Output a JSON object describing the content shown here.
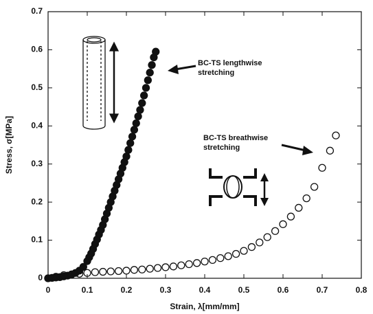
{
  "chart_data": {
    "type": "scatter",
    "x_label": "Strain, λ[mm/mm]",
    "y_label": "Stress, σ[MPa]",
    "xlim": [
      0,
      0.8
    ],
    "ylim": [
      0,
      0.7
    ],
    "xticks": [
      0,
      0.1,
      0.2,
      0.3,
      0.4,
      0.5,
      0.6,
      0.7,
      0.8
    ],
    "yticks": [
      0,
      0.1,
      0.2,
      0.3,
      0.4,
      0.5,
      0.6,
      0.7
    ],
    "annotations": [
      "BC-TS lengthwise",
      "stretching",
      "BC-TS breathwise",
      "stretching"
    ],
    "series": [
      {
        "color": "#111111",
        "filled": true,
        "x": [
          0,
          0.01,
          0.02,
          0.03,
          0.04,
          0.05,
          0.06,
          0.07,
          0.08,
          0.09,
          0.1,
          0.105,
          0.11,
          0.115,
          0.12,
          0.125,
          0.13,
          0.135,
          0.14,
          0.145,
          0.15,
          0.155,
          0.16,
          0.165,
          0.17,
          0.175,
          0.18,
          0.185,
          0.19,
          0.195,
          0.2,
          0.205,
          0.21,
          0.215,
          0.22,
          0.225,
          0.23,
          0.235,
          0.24,
          0.245,
          0.25,
          0.255,
          0.26,
          0.265,
          0.27,
          0.275
        ],
        "values": [
          0,
          0.001,
          0.002,
          0.003,
          0.005,
          0.007,
          0.01,
          0.014,
          0.02,
          0.03,
          0.045,
          0.055,
          0.065,
          0.077,
          0.09,
          0.102,
          0.115,
          0.127,
          0.14,
          0.155,
          0.17,
          0.185,
          0.2,
          0.215,
          0.23,
          0.245,
          0.26,
          0.275,
          0.29,
          0.305,
          0.32,
          0.337,
          0.355,
          0.372,
          0.39,
          0.407,
          0.425,
          0.442,
          0.46,
          0.48,
          0.5,
          0.52,
          0.54,
          0.56,
          0.58,
          0.595
        ]
      },
      {
        "color": "#111111",
        "filled": false,
        "x": [
          0,
          0.02,
          0.04,
          0.06,
          0.08,
          0.1,
          0.12,
          0.14,
          0.16,
          0.18,
          0.2,
          0.22,
          0.24,
          0.26,
          0.28,
          0.3,
          0.32,
          0.34,
          0.36,
          0.38,
          0.4,
          0.42,
          0.44,
          0.46,
          0.48,
          0.5,
          0.52,
          0.54,
          0.56,
          0.58,
          0.6,
          0.62,
          0.64,
          0.66,
          0.68,
          0.7,
          0.72,
          0.735
        ],
        "values": [
          0,
          0.004,
          0.008,
          0.01,
          0.012,
          0.014,
          0.016,
          0.017,
          0.018,
          0.019,
          0.02,
          0.022,
          0.023,
          0.025,
          0.027,
          0.029,
          0.031,
          0.034,
          0.037,
          0.04,
          0.044,
          0.048,
          0.053,
          0.058,
          0.064,
          0.072,
          0.082,
          0.094,
          0.108,
          0.124,
          0.142,
          0.162,
          0.185,
          0.21,
          0.24,
          0.29,
          0.335,
          0.375
        ]
      }
    ]
  }
}
